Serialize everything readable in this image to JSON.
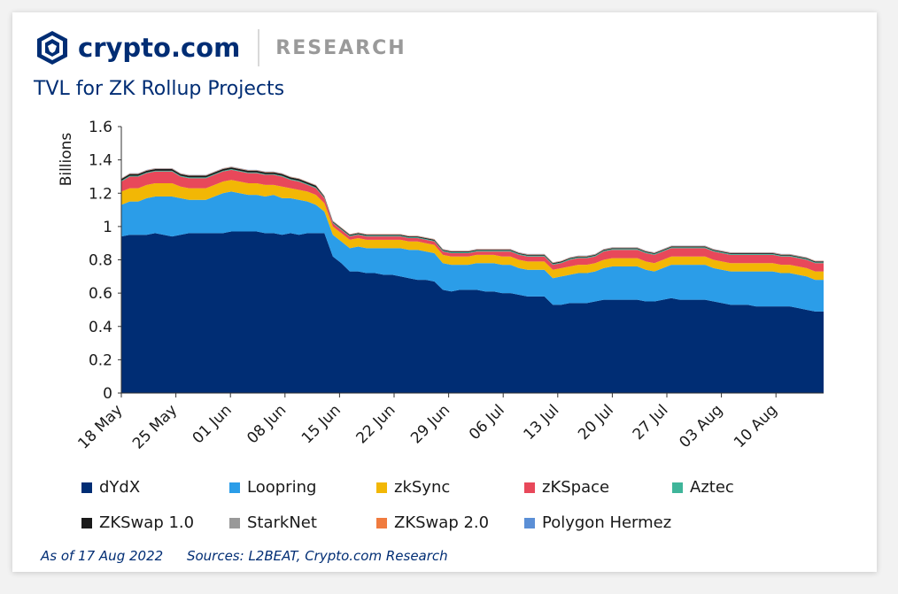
{
  "brand": {
    "name": "crypto.com",
    "section": "RESEARCH",
    "logo_icon": "crypto-com-lion-shield-icon"
  },
  "colors": {
    "brand_blue": "#002d74",
    "accent_light": "#2b9de8"
  },
  "chart_data": {
    "type": "area",
    "stacked": true,
    "title": "TVL for ZK Rollup Projects",
    "ylabel": "Billions",
    "xlabel": "",
    "ylim": [
      0,
      1.6
    ],
    "yticks": [
      0,
      0.2,
      0.4,
      0.6,
      0.8,
      1,
      1.2,
      1.4,
      1.6
    ],
    "ytick_labels": [
      "0",
      "0.2",
      "0.4",
      "0.6",
      "0.8",
      "1",
      "1.2",
      "1.4",
      "1.6"
    ],
    "xticks": [
      "18 May",
      "25 May",
      "01 Jun",
      "08 Jun",
      "15 Jun",
      "22 Jun",
      "29 Jun",
      "06 Jul",
      "13 Jul",
      "20 Jul",
      "27 Jul",
      "03 Aug",
      "10 Aug"
    ],
    "x_start": "18 May",
    "x_end": "17 Aug",
    "legend_position": "bottom",
    "grid": false,
    "series": [
      {
        "name": "dYdX",
        "color": "#002d74",
        "values": [
          0.94,
          0.95,
          0.95,
          0.95,
          0.96,
          0.95,
          0.94,
          0.95,
          0.96,
          0.96,
          0.96,
          0.96,
          0.96,
          0.97,
          0.97,
          0.97,
          0.97,
          0.96,
          0.96,
          0.95,
          0.96,
          0.95,
          0.96,
          0.96,
          0.96,
          0.82,
          0.78,
          0.73,
          0.73,
          0.72,
          0.72,
          0.71,
          0.71,
          0.7,
          0.69,
          0.68,
          0.68,
          0.67,
          0.62,
          0.61,
          0.62,
          0.62,
          0.62,
          0.61,
          0.61,
          0.6,
          0.6,
          0.59,
          0.58,
          0.58,
          0.58,
          0.53,
          0.53,
          0.54,
          0.54,
          0.54,
          0.55,
          0.56,
          0.56,
          0.56,
          0.56,
          0.56,
          0.55,
          0.55,
          0.56,
          0.57,
          0.56,
          0.56,
          0.56,
          0.56,
          0.55,
          0.54,
          0.53,
          0.53,
          0.53,
          0.52,
          0.52,
          0.52,
          0.52,
          0.52,
          0.51,
          0.5,
          0.49,
          0.49
        ]
      },
      {
        "name": "Loopring",
        "color": "#2b9de8",
        "values": [
          0.19,
          0.2,
          0.2,
          0.22,
          0.22,
          0.23,
          0.24,
          0.22,
          0.2,
          0.2,
          0.2,
          0.22,
          0.24,
          0.24,
          0.23,
          0.22,
          0.22,
          0.22,
          0.23,
          0.22,
          0.21,
          0.21,
          0.19,
          0.17,
          0.13,
          0.13,
          0.13,
          0.14,
          0.15,
          0.15,
          0.15,
          0.16,
          0.16,
          0.17,
          0.17,
          0.18,
          0.17,
          0.17,
          0.16,
          0.16,
          0.15,
          0.15,
          0.16,
          0.17,
          0.17,
          0.17,
          0.17,
          0.16,
          0.16,
          0.16,
          0.16,
          0.16,
          0.17,
          0.17,
          0.18,
          0.18,
          0.18,
          0.19,
          0.2,
          0.2,
          0.2,
          0.2,
          0.19,
          0.18,
          0.19,
          0.2,
          0.21,
          0.21,
          0.21,
          0.21,
          0.2,
          0.2,
          0.2,
          0.2,
          0.2,
          0.21,
          0.21,
          0.21,
          0.2,
          0.2,
          0.2,
          0.2,
          0.19,
          0.19
        ]
      },
      {
        "name": "zkSync",
        "color": "#f2b705",
        "values": [
          0.08,
          0.08,
          0.08,
          0.08,
          0.08,
          0.08,
          0.08,
          0.07,
          0.07,
          0.07,
          0.07,
          0.07,
          0.07,
          0.07,
          0.07,
          0.07,
          0.07,
          0.07,
          0.06,
          0.07,
          0.06,
          0.06,
          0.06,
          0.06,
          0.05,
          0.05,
          0.05,
          0.05,
          0.05,
          0.05,
          0.05,
          0.05,
          0.05,
          0.05,
          0.05,
          0.05,
          0.05,
          0.05,
          0.05,
          0.05,
          0.05,
          0.05,
          0.05,
          0.05,
          0.05,
          0.05,
          0.05,
          0.05,
          0.05,
          0.05,
          0.05,
          0.05,
          0.05,
          0.05,
          0.05,
          0.05,
          0.05,
          0.05,
          0.05,
          0.05,
          0.05,
          0.05,
          0.05,
          0.05,
          0.05,
          0.05,
          0.05,
          0.05,
          0.05,
          0.05,
          0.05,
          0.05,
          0.05,
          0.05,
          0.05,
          0.05,
          0.05,
          0.05,
          0.05,
          0.05,
          0.05,
          0.05,
          0.05,
          0.05
        ]
      },
      {
        "name": "zKSpace",
        "color": "#e8485a",
        "values": [
          0.06,
          0.07,
          0.07,
          0.07,
          0.07,
          0.07,
          0.07,
          0.06,
          0.06,
          0.06,
          0.06,
          0.06,
          0.06,
          0.06,
          0.06,
          0.06,
          0.06,
          0.06,
          0.06,
          0.06,
          0.05,
          0.05,
          0.04,
          0.04,
          0.03,
          0.02,
          0.02,
          0.02,
          0.02,
          0.02,
          0.02,
          0.02,
          0.02,
          0.02,
          0.02,
          0.02,
          0.02,
          0.02,
          0.02,
          0.02,
          0.02,
          0.02,
          0.02,
          0.02,
          0.02,
          0.03,
          0.03,
          0.03,
          0.03,
          0.03,
          0.03,
          0.03,
          0.03,
          0.04,
          0.04,
          0.04,
          0.04,
          0.05,
          0.05,
          0.05,
          0.05,
          0.05,
          0.05,
          0.05,
          0.05,
          0.05,
          0.05,
          0.05,
          0.05,
          0.05,
          0.05,
          0.05,
          0.05,
          0.05,
          0.05,
          0.05,
          0.05,
          0.05,
          0.05,
          0.05,
          0.05,
          0.05,
          0.05,
          0.05
        ]
      },
      {
        "name": "Aztec",
        "color": "#3fb59a",
        "values": [
          0.005,
          0.005,
          0.005,
          0.005,
          0.005,
          0.005,
          0.005,
          0.005,
          0.005,
          0.005,
          0.005,
          0.005,
          0.005,
          0.005,
          0.005,
          0.005,
          0.005,
          0.005,
          0.005,
          0.005,
          0.005,
          0.005,
          0.005,
          0.005,
          0.005,
          0.005,
          0.005,
          0.005,
          0.005,
          0.005,
          0.005,
          0.005,
          0.005,
          0.005,
          0.005,
          0.005,
          0.005,
          0.005,
          0.005,
          0.005,
          0.005,
          0.005,
          0.005,
          0.005,
          0.005,
          0.005,
          0.005,
          0.005,
          0.005,
          0.005,
          0.005,
          0.005,
          0.005,
          0.005,
          0.005,
          0.005,
          0.005,
          0.005,
          0.005,
          0.005,
          0.005,
          0.005,
          0.005,
          0.005,
          0.005,
          0.005,
          0.005,
          0.005,
          0.005,
          0.005,
          0.005,
          0.005,
          0.005,
          0.005,
          0.005,
          0.005,
          0.005,
          0.005,
          0.005,
          0.005,
          0.005,
          0.005,
          0.005,
          0.005
        ]
      },
      {
        "name": "ZKSwap 1.0",
        "color": "#1a1a1a",
        "values": [
          0.01,
          0.01,
          0.01,
          0.01,
          0.01,
          0.01,
          0.01,
          0.01,
          0.01,
          0.01,
          0.01,
          0.01,
          0.01,
          0.01,
          0.01,
          0.01,
          0.01,
          0.01,
          0.01,
          0.01,
          0.01,
          0.01,
          0.01,
          0.01,
          0.005,
          0.005,
          0.005,
          0.005,
          0.005,
          0.005,
          0.005,
          0.005,
          0.005,
          0.005,
          0.005,
          0.005,
          0.005,
          0.005,
          0.005,
          0.005,
          0.005,
          0.005,
          0.005,
          0.005,
          0.005,
          0.005,
          0.005,
          0.005,
          0.005,
          0.005,
          0.005,
          0.005,
          0.005,
          0.005,
          0.005,
          0.005,
          0.005,
          0.005,
          0.005,
          0.005,
          0.005,
          0.005,
          0.005,
          0.005,
          0.005,
          0.005,
          0.005,
          0.005,
          0.005,
          0.005,
          0.005,
          0.005,
          0.005,
          0.005,
          0.005,
          0.005,
          0.005,
          0.005,
          0.005,
          0.005,
          0.005,
          0.005,
          0.005,
          0.005
        ]
      },
      {
        "name": "StarkNet",
        "color": "#999999",
        "values": [
          0.002,
          0.002,
          0.002,
          0.002,
          0.002,
          0.002,
          0.002,
          0.002,
          0.002,
          0.002,
          0.002,
          0.002,
          0.002,
          0.002,
          0.002,
          0.002,
          0.002,
          0.002,
          0.002,
          0.002,
          0.002,
          0.002,
          0.002,
          0.002,
          0.002,
          0.002,
          0.002,
          0.002,
          0.002,
          0.002,
          0.002,
          0.002,
          0.002,
          0.002,
          0.002,
          0.002,
          0.002,
          0.002,
          0.002,
          0.002,
          0.002,
          0.002,
          0.002,
          0.002,
          0.002,
          0.002,
          0.002,
          0.002,
          0.002,
          0.002,
          0.002,
          0.002,
          0.002,
          0.002,
          0.002,
          0.002,
          0.002,
          0.002,
          0.002,
          0.002,
          0.002,
          0.002,
          0.002,
          0.002,
          0.002,
          0.002,
          0.002,
          0.002,
          0.002,
          0.002,
          0.002,
          0.002,
          0.002,
          0.002,
          0.002,
          0.002,
          0.002,
          0.002,
          0.002,
          0.002,
          0.002,
          0.002,
          0.002,
          0.002
        ]
      },
      {
        "name": "ZKSwap 2.0",
        "color": "#f07b3f",
        "values": [
          0.002,
          0.002,
          0.002,
          0.002,
          0.002,
          0.002,
          0.002,
          0.002,
          0.002,
          0.002,
          0.002,
          0.002,
          0.002,
          0.002,
          0.002,
          0.002,
          0.002,
          0.002,
          0.002,
          0.002,
          0.002,
          0.002,
          0.002,
          0.002,
          0.002,
          0.002,
          0.002,
          0.002,
          0.002,
          0.002,
          0.002,
          0.002,
          0.002,
          0.002,
          0.002,
          0.002,
          0.002,
          0.002,
          0.002,
          0.002,
          0.002,
          0.002,
          0.002,
          0.002,
          0.002,
          0.002,
          0.002,
          0.002,
          0.002,
          0.002,
          0.002,
          0.002,
          0.002,
          0.002,
          0.002,
          0.002,
          0.002,
          0.002,
          0.002,
          0.002,
          0.002,
          0.002,
          0.002,
          0.002,
          0.002,
          0.002,
          0.002,
          0.002,
          0.002,
          0.002,
          0.002,
          0.002,
          0.002,
          0.002,
          0.002,
          0.002,
          0.002,
          0.002,
          0.002,
          0.002,
          0.002,
          0.002,
          0.002,
          0.002
        ]
      },
      {
        "name": "Polygon Hermez",
        "color": "#5b8fd6",
        "values": [
          0.001,
          0.001,
          0.001,
          0.001,
          0.001,
          0.001,
          0.001,
          0.001,
          0.001,
          0.001,
          0.001,
          0.001,
          0.001,
          0.001,
          0.001,
          0.001,
          0.001,
          0.001,
          0.001,
          0.001,
          0.001,
          0.001,
          0.001,
          0.001,
          0.001,
          0.001,
          0.001,
          0.001,
          0.001,
          0.001,
          0.001,
          0.001,
          0.001,
          0.001,
          0.001,
          0.001,
          0.001,
          0.001,
          0.001,
          0.001,
          0.001,
          0.001,
          0.001,
          0.001,
          0.001,
          0.001,
          0.001,
          0.001,
          0.001,
          0.001,
          0.001,
          0.001,
          0.001,
          0.001,
          0.001,
          0.001,
          0.001,
          0.001,
          0.001,
          0.001,
          0.001,
          0.001,
          0.001,
          0.001,
          0.001,
          0.001,
          0.001,
          0.001,
          0.001,
          0.001,
          0.001,
          0.001,
          0.001,
          0.001,
          0.001,
          0.001,
          0.001,
          0.001,
          0.001,
          0.001,
          0.001,
          0.001,
          0.001,
          0.001
        ]
      }
    ]
  },
  "footnote": {
    "as_of": "As of 17 Aug 2022",
    "sources": "Sources:  L2BEAT, Crypto.com Research"
  }
}
